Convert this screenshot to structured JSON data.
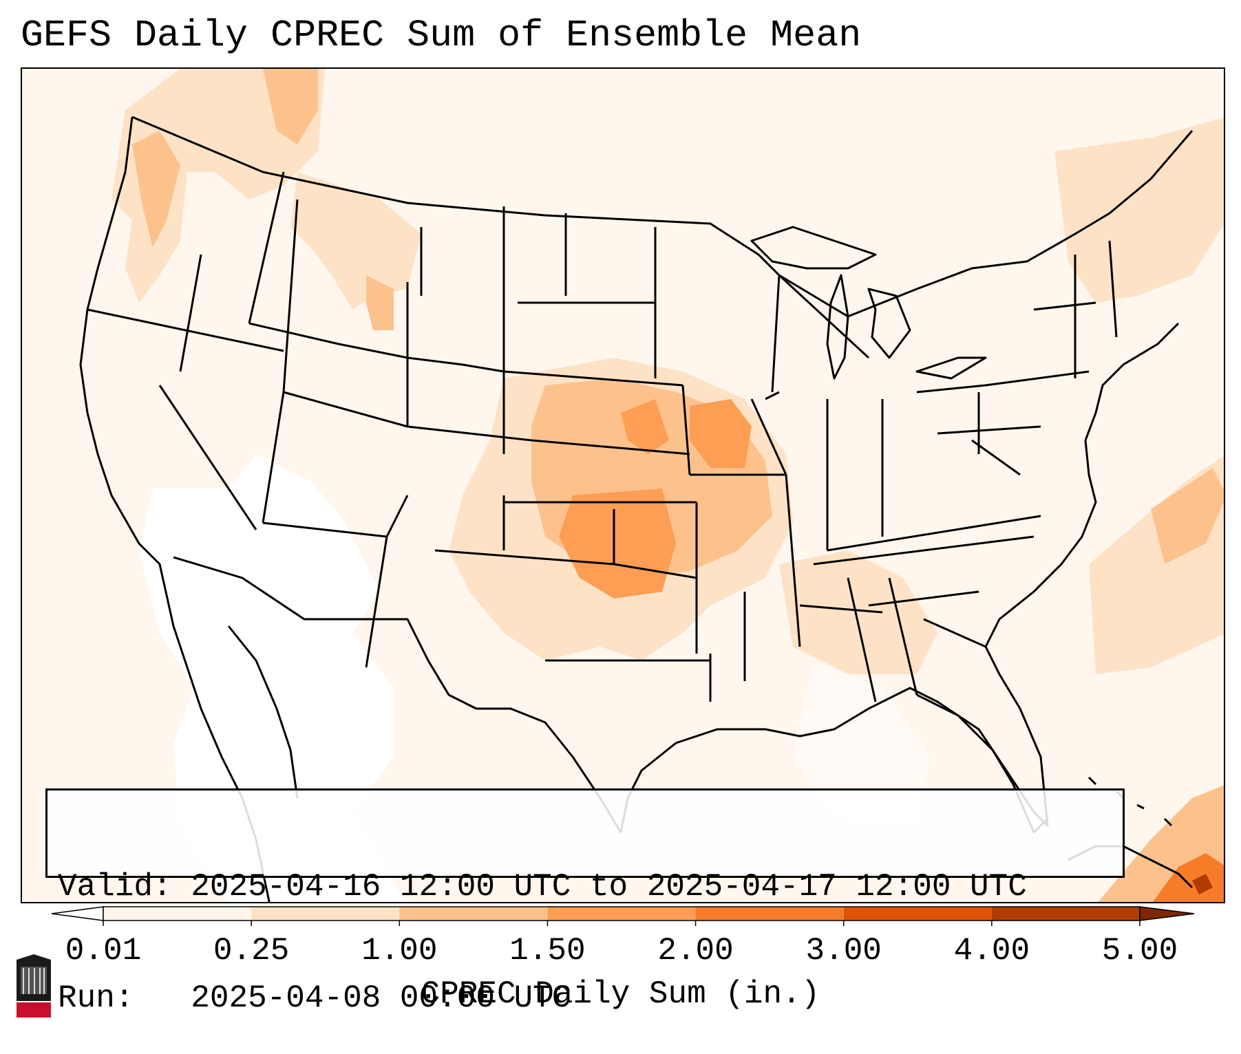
{
  "title": "GEFS Daily CPREC Sum of Ensemble Mean",
  "info": {
    "valid_label": "Valid:",
    "valid_value": "2025-04-16 12:00 UTC to 2025-04-17 12:00 UTC",
    "run_label": "Run:",
    "run_value": "2025-04-08 00:00 UTC"
  },
  "colorbar": {
    "label": "CPREC Daily Sum (in.)",
    "ticks": [
      "0.01",
      "0.25",
      "1.00",
      "1.50",
      "2.00",
      "3.00",
      "4.00",
      "5.00"
    ],
    "colors": [
      "#fff5eb",
      "#fde2c6",
      "#fdc28c",
      "#fd9e54",
      "#f67c2a",
      "#e05206",
      "#b03c02",
      "#7f2704"
    ],
    "under_color": "#ffffff",
    "over_color": "#7f2704"
  },
  "logo": {
    "text": "NIU",
    "color": "#c8102e"
  },
  "map": {
    "background_color": "#fff7ef",
    "region": "Continental United States",
    "heaviest_area": "Oklahoma / Missouri"
  }
}
